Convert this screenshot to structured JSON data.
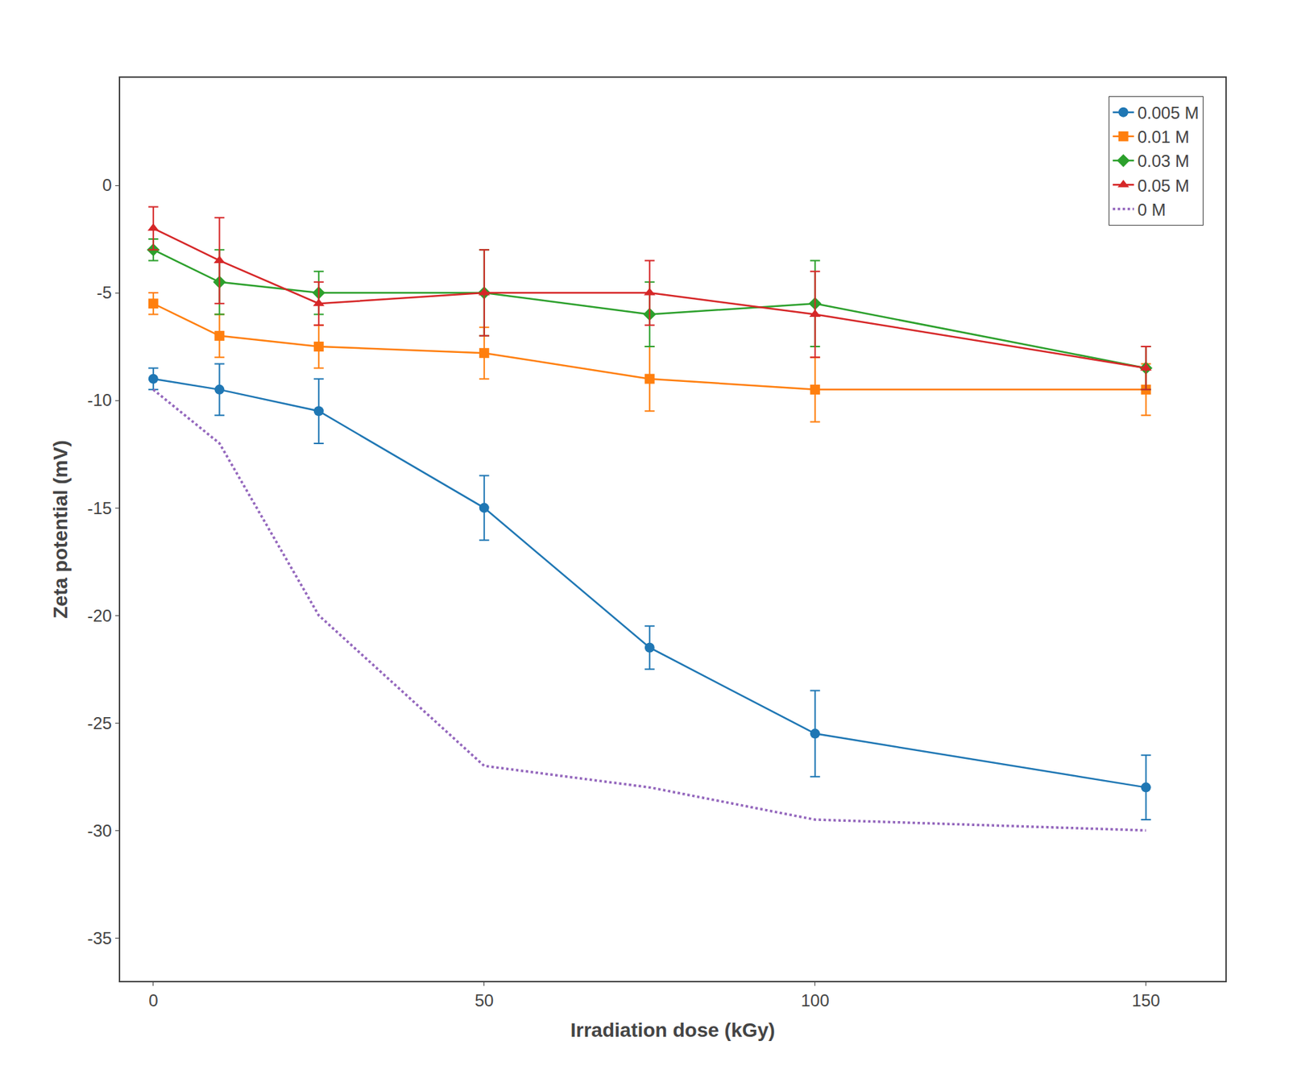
{
  "chart_data": {
    "type": "line",
    "x": [
      0,
      10,
      25,
      50,
      75,
      100,
      150
    ],
    "series": [
      {
        "name": "0.005 M",
        "values": [
          -9.0,
          -9.5,
          -10.5,
          -15.0,
          -21.5,
          -25.5,
          -28.0
        ],
        "yerr": [
          0.5,
          1.2,
          1.5,
          1.5,
          1.0,
          2.0,
          1.5
        ],
        "marker": "circle",
        "line_style": "solid"
      },
      {
        "name": "0.01 M",
        "values": [
          -5.5,
          -7.0,
          -7.5,
          -7.8,
          -9.0,
          -9.5,
          -9.5
        ],
        "yerr": [
          0.5,
          1.0,
          1.0,
          1.2,
          1.5,
          1.5,
          1.2
        ],
        "marker": "square",
        "line_style": "solid"
      },
      {
        "name": "0.03 M",
        "values": [
          -3.0,
          -4.5,
          -5.0,
          -5.0,
          -6.0,
          -5.5,
          -8.5
        ],
        "yerr": [
          0.5,
          1.5,
          1.0,
          2.0,
          1.5,
          2.0,
          1.0
        ],
        "marker": "diamond",
        "line_style": "solid"
      },
      {
        "name": "0.05 M",
        "values": [
          -2.0,
          -3.5,
          -5.5,
          -5.0,
          -5.0,
          -6.0,
          -8.5
        ],
        "yerr": [
          1.0,
          2.0,
          1.0,
          2.0,
          1.5,
          2.0,
          1.0
        ],
        "marker": "triangle-up",
        "line_style": "solid"
      },
      {
        "name": "0 M",
        "values": [
          -9.5,
          -12.0,
          -20.0,
          -27.0,
          -28.0,
          -29.5,
          -30.0
        ],
        "line_style": "dotted"
      }
    ],
    "x_label": "Irradiation dose (kGy)",
    "y_label": "Zeta potential (mV)",
    "xlim": [
      -5,
      162
    ],
    "ylim": [
      -37,
      5
    ],
    "xticks": [
      0,
      50,
      100,
      150
    ],
    "yticks": [
      0,
      -5,
      -10,
      -15,
      -20,
      -25,
      -30,
      -35
    ],
    "legend": "upper right",
    "grid": false
  }
}
